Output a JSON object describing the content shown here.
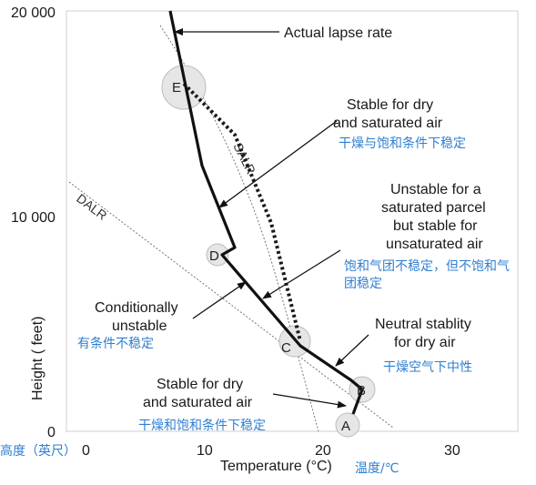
{
  "axes": {
    "y_ticks": [
      "20 000",
      "10 000",
      "0"
    ],
    "x_ticks": [
      "0",
      "10",
      "20",
      "30"
    ],
    "y_label": "Height ( feet)",
    "y_label_cn": "高度（英尺）",
    "x_label": "Temperature (°C)",
    "x_label_cn": "温度/℃"
  },
  "curves": {
    "dalr": "DALR",
    "salr": "SALR"
  },
  "points": [
    "A",
    "B",
    "C",
    "D",
    "E"
  ],
  "labels": {
    "actual": "Actual lapse rate",
    "stable_top": [
      "Stable for dry",
      "and saturated air"
    ],
    "stable_top_cn": "干燥与饱和条件下稳定",
    "unstable_sat": [
      "Unstable for a",
      "saturated parcel",
      "but stable for",
      "unsaturated air"
    ],
    "unstable_sat_cn": [
      "饱和气团不稳定，但不饱和气",
      "团稳定"
    ],
    "conditional": [
      "Conditionally",
      "unstable"
    ],
    "conditional_cn": "有条件不稳定",
    "neutral": [
      "Neutral stablity",
      "for dry air"
    ],
    "neutral_cn": "干燥空气下中性",
    "stable_bottom": [
      "Stable for dry",
      "and saturated air"
    ],
    "stable_bottom_cn": "干燥和饱和条件下稳定"
  },
  "colors": {
    "text": "#1a1a1a",
    "chinese": "#2f7fd0",
    "circle_fill": "#e6e6e6",
    "circle_stroke": "#bdbdbd"
  }
}
